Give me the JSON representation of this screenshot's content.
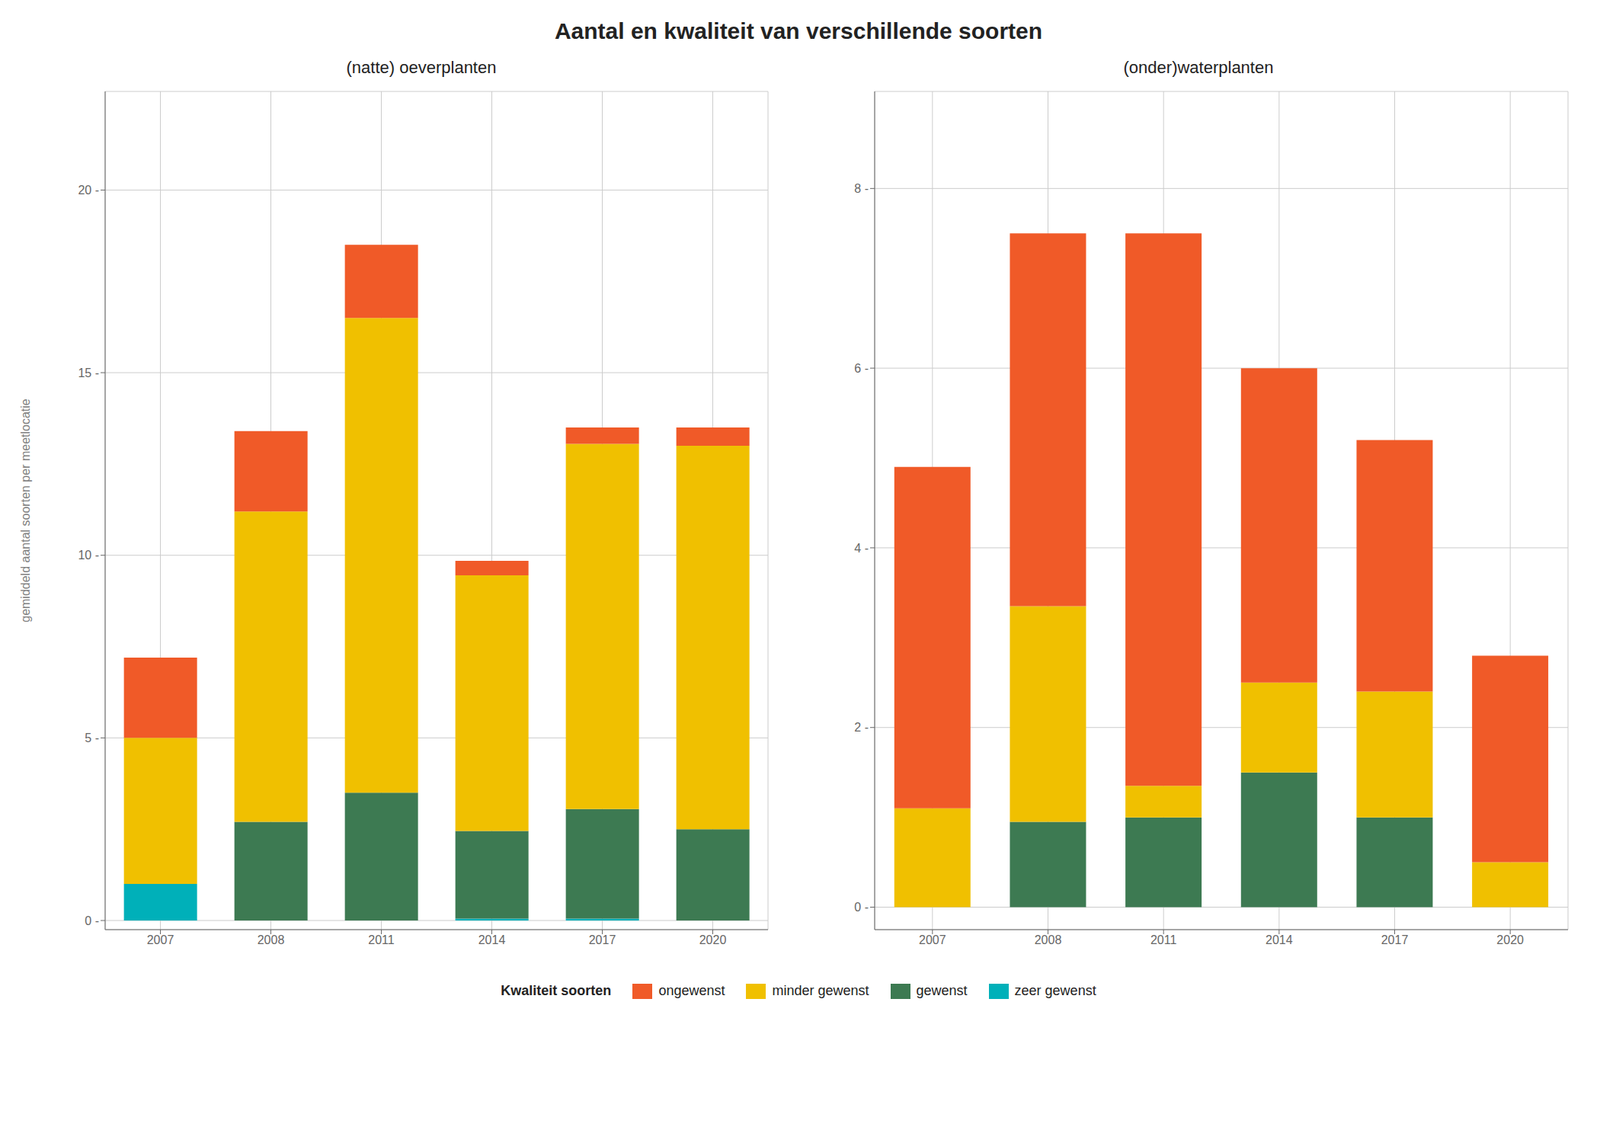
{
  "title": "Aantal en kwaliteit van verschillende soorten",
  "legend_title": "Kwaliteit soorten",
  "chart_data": [
    {
      "type": "bar",
      "stacked": true,
      "grid": true,
      "subtitle": "(natte) oeverplanten",
      "ylabel": "gemiddeld aantal soorten per meetlocatie",
      "categories": [
        "2007",
        "2008",
        "2011",
        "2014",
        "2017",
        "2020"
      ],
      "series": [
        {
          "name": "zeer gewenst",
          "color": "#00B0B9",
          "values": [
            1.0,
            0.0,
            0.0,
            0.05,
            0.05,
            0.0
          ]
        },
        {
          "name": "gewenst",
          "color": "#3D7A52",
          "values": [
            0.0,
            2.7,
            3.5,
            2.4,
            3.0,
            2.5
          ]
        },
        {
          "name": "minder gewenst",
          "color": "#F0C000",
          "values": [
            4.0,
            8.5,
            13.0,
            7.0,
            10.0,
            10.5
          ]
        },
        {
          "name": "ongewenst",
          "color": "#F05A28",
          "values": [
            2.2,
            2.2,
            2.0,
            0.4,
            0.45,
            0.5
          ]
        }
      ],
      "ylim": [
        -0.25,
        22.7
      ],
      "yticks": [
        {
          "value": 0,
          "label": "0 -"
        },
        {
          "value": 5,
          "label": "5 -"
        },
        {
          "value": 10,
          "label": "10 -"
        },
        {
          "value": 15,
          "label": "15 -"
        },
        {
          "value": 20,
          "label": "20 -"
        }
      ]
    },
    {
      "type": "bar",
      "stacked": true,
      "grid": true,
      "subtitle": "(onder)waterplanten",
      "categories": [
        "2007",
        "2008",
        "2011",
        "2014",
        "2017",
        "2020"
      ],
      "series": [
        {
          "name": "zeer gewenst",
          "color": "#00B0B9",
          "values": [
            0.0,
            0.0,
            0.0,
            0.0,
            0.0,
            0.0
          ]
        },
        {
          "name": "gewenst",
          "color": "#3D7A52",
          "values": [
            0.0,
            0.95,
            1.0,
            1.5,
            1.0,
            0.0
          ]
        },
        {
          "name": "minder gewenst",
          "color": "#F0C000",
          "values": [
            1.1,
            2.4,
            0.35,
            1.0,
            1.4,
            0.5
          ]
        },
        {
          "name": "ongewenst",
          "color": "#F05A28",
          "values": [
            3.8,
            4.15,
            6.15,
            3.5,
            2.8,
            2.3
          ]
        }
      ],
      "ylim": [
        -0.25,
        9.08
      ],
      "yticks": [
        {
          "value": 0,
          "label": "0 -"
        },
        {
          "value": 2,
          "label": "2 -"
        },
        {
          "value": 4,
          "label": "4 -"
        },
        {
          "value": 6,
          "label": "6 -"
        },
        {
          "value": 8,
          "label": "8 -"
        }
      ]
    }
  ]
}
